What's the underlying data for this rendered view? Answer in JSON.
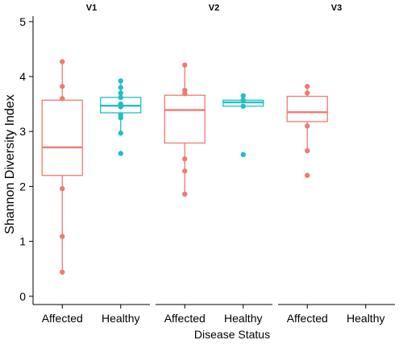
{
  "chart_data": {
    "type": "box",
    "ylabel": "Shannon Diversity Index",
    "xlabel": "Disease Status",
    "ylim": [
      -0.15,
      5.1
    ],
    "yticks": [
      0,
      1,
      2,
      3,
      4,
      5
    ],
    "grid": false,
    "legend": "none",
    "categories": [
      "Affected",
      "Healthy"
    ],
    "colors": {
      "Affected": "#F07B72",
      "Healthy": "#21BFC3"
    },
    "panels": [
      {
        "label": "V1",
        "groups": [
          {
            "category": "Affected",
            "box": {
              "q1": 2.2,
              "median": 2.71,
              "q3": 3.57
            },
            "whisker": [
              0.44,
              4.27
            ],
            "points": [
              4.27,
              3.82,
              3.6,
              1.96,
              1.09,
              0.44
            ]
          },
          {
            "category": "Healthy",
            "box": {
              "q1": 3.34,
              "median": 3.47,
              "q3": 3.62
            },
            "whisker": [
              2.97,
              3.92
            ],
            "points": [
              3.92,
              3.8,
              3.7,
              3.62,
              3.5,
              3.45,
              3.3,
              3.25,
              2.97,
              2.6
            ]
          }
        ]
      },
      {
        "label": "V2",
        "groups": [
          {
            "category": "Affected",
            "box": {
              "q1": 2.79,
              "median": 3.39,
              "q3": 3.66
            },
            "whisker": [
              1.86,
              4.21
            ],
            "points": [
              4.21,
              3.75,
              3.69,
              2.5,
              2.28,
              1.86
            ]
          },
          {
            "category": "Healthy",
            "box": {
              "q1": 3.46,
              "median": 3.53,
              "q3": 3.57
            },
            "whisker": [
              3.46,
              3.65
            ],
            "points": [
              3.65,
              3.57,
              3.46,
              2.58
            ]
          }
        ]
      },
      {
        "label": "V3",
        "groups": [
          {
            "category": "Affected",
            "box": {
              "q1": 3.18,
              "median": 3.35,
              "q3": 3.64
            },
            "whisker": [
              2.65,
              3.82
            ],
            "points": [
              3.82,
              3.7,
              3.1,
              2.65,
              2.2
            ]
          }
        ]
      }
    ]
  }
}
